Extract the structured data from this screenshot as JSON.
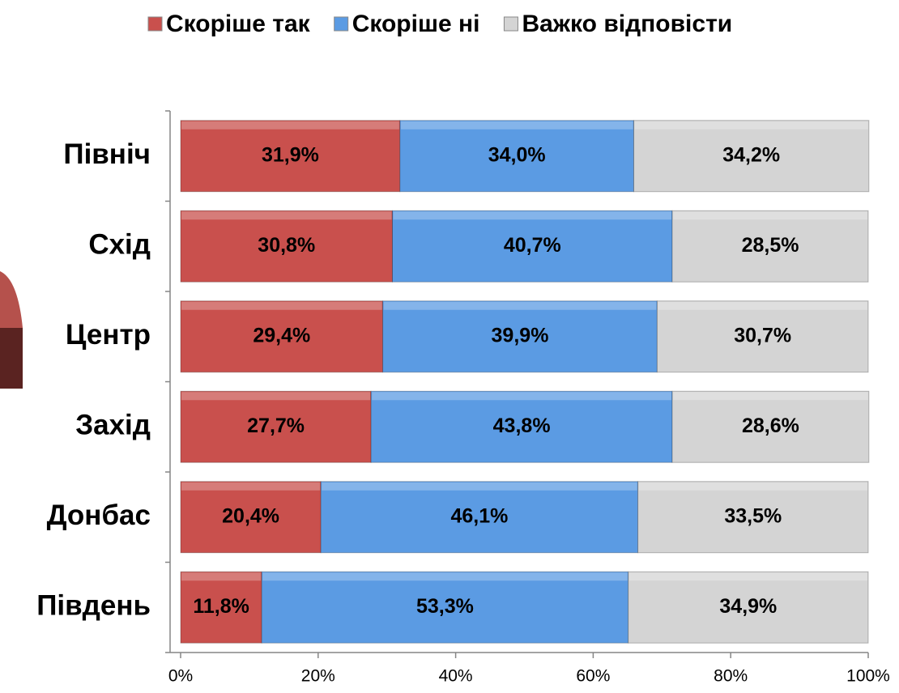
{
  "chart_data": {
    "type": "stacked-bar-horizontal",
    "categories": [
      "Північ",
      "Схід",
      "Центр",
      "Захід",
      "Донбас",
      "Південь"
    ],
    "series": [
      {
        "name": "Скоріше так",
        "color": "#c9504d",
        "values": [
          31.9,
          30.8,
          29.4,
          27.7,
          20.4,
          11.8
        ],
        "value_labels": [
          "31,9%",
          "30,8%",
          "29,4%",
          "27,7%",
          "20,4%",
          "11,8%"
        ]
      },
      {
        "name": "Скоріше ні",
        "color": "#5b9be3",
        "values": [
          34.0,
          40.7,
          39.9,
          43.8,
          46.1,
          53.3
        ],
        "value_labels": [
          "34,0%",
          "40,7%",
          "39,9%",
          "43,8%",
          "46,1%",
          "53,3%"
        ]
      },
      {
        "name": "Важко відповісти",
        "color": "#d4d4d4",
        "values": [
          34.2,
          28.5,
          30.7,
          28.6,
          33.5,
          34.9
        ],
        "value_labels": [
          "34,2%",
          "28,5%",
          "30,7%",
          "28,6%",
          "33,5%",
          "34,9%"
        ]
      }
    ],
    "xlim": [
      0,
      100
    ],
    "xticks": [
      {
        "value": 0,
        "label": "0%"
      },
      {
        "value": 20,
        "label": "20%"
      },
      {
        "value": 40,
        "label": "40%"
      },
      {
        "value": 60,
        "label": "60%"
      },
      {
        "value": 80,
        "label": "80%"
      },
      {
        "value": 100,
        "label": "100%"
      }
    ],
    "legend": "top"
  }
}
